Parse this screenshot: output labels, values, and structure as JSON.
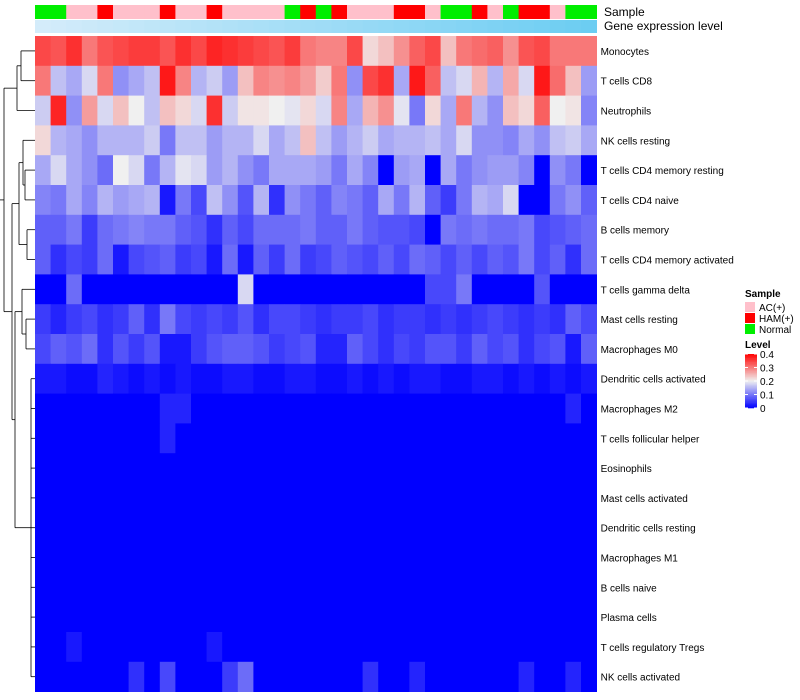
{
  "chart_data": {
    "type": "heatmap",
    "title": "",
    "annotation_labels": [
      "Sample",
      "Gene expression level"
    ],
    "rows": [
      "Monocytes",
      "T cells CD8",
      "Neutrophils",
      "NK cells resting",
      "T cells CD4 memory resting",
      "T cells CD4 naive",
      "B cells memory",
      "T cells CD4 memory activated",
      "T cells gamma delta",
      "Mast cells resting",
      "Macrophages M0",
      "Dendritic cells activated",
      "Macrophages M2",
      "T cells follicular helper",
      "Eosinophils",
      "Mast cells activated",
      "Dendritic cells resting",
      "Macrophages M1",
      "B cells naive",
      "Plasma cells",
      "T cells regulatory  Tregs",
      "NK cells activated"
    ],
    "n_samples": 36,
    "sample_groups": [
      "Normal",
      "Normal",
      "AC(+)",
      "AC(+)",
      "HAM(+)",
      "AC(+)",
      "AC(+)",
      "AC(+)",
      "HAM(+)",
      "AC(+)",
      "AC(+)",
      "HAM(+)",
      "AC(+)",
      "AC(+)",
      "AC(+)",
      "AC(+)",
      "Normal",
      "HAM(+)",
      "Normal",
      "HAM(+)",
      "AC(+)",
      "AC(+)",
      "AC(+)",
      "HAM(+)",
      "HAM(+)",
      "AC(+)",
      "Normal",
      "Normal",
      "HAM(+)",
      "AC(+)",
      "Normal",
      "HAM(+)",
      "HAM(+)",
      "AC(+)",
      "Normal",
      "Normal"
    ],
    "values": [
      [
        0.34,
        0.33,
        0.36,
        0.3,
        0.33,
        0.34,
        0.35,
        0.35,
        0.33,
        0.36,
        0.34,
        0.37,
        0.36,
        0.35,
        0.34,
        0.33,
        0.35,
        0.3,
        0.29,
        0.29,
        0.34,
        0.22,
        0.24,
        0.28,
        0.32,
        0.34,
        0.24,
        0.3,
        0.31,
        0.32,
        0.28,
        0.33,
        0.34,
        0.3,
        0.3,
        0.3
      ],
      [
        0.3,
        0.16,
        0.14,
        0.18,
        0.3,
        0.12,
        0.14,
        0.16,
        0.38,
        0.29,
        0.15,
        0.17,
        0.13,
        0.24,
        0.29,
        0.28,
        0.29,
        0.27,
        0.23,
        0.3,
        0.12,
        0.34,
        0.36,
        0.14,
        0.38,
        0.32,
        0.16,
        0.18,
        0.25,
        0.15,
        0.26,
        0.18,
        0.38,
        0.31,
        0.24,
        0.13
      ],
      [
        0.17,
        0.37,
        0.12,
        0.27,
        0.18,
        0.24,
        0.2,
        0.16,
        0.24,
        0.22,
        0.18,
        0.36,
        0.17,
        0.21,
        0.21,
        0.2,
        0.19,
        0.22,
        0.18,
        0.29,
        0.14,
        0.25,
        0.28,
        0.19,
        0.1,
        0.22,
        0.14,
        0.3,
        0.15,
        0.12,
        0.24,
        0.22,
        0.32,
        0.2,
        0.21,
        0.11
      ],
      [
        0.22,
        0.15,
        0.14,
        0.12,
        0.15,
        0.15,
        0.15,
        0.17,
        0.1,
        0.16,
        0.16,
        0.13,
        0.15,
        0.15,
        0.18,
        0.14,
        0.16,
        0.24,
        0.16,
        0.13,
        0.15,
        0.17,
        0.14,
        0.15,
        0.15,
        0.16,
        0.14,
        0.18,
        0.12,
        0.12,
        0.11,
        0.14,
        0.12,
        0.16,
        0.17,
        0.14
      ],
      [
        0.14,
        0.18,
        0.14,
        0.12,
        0.09,
        0.2,
        0.18,
        0.1,
        0.15,
        0.19,
        0.18,
        0.13,
        0.15,
        0.12,
        0.1,
        0.14,
        0.14,
        0.14,
        0.13,
        0.1,
        0.14,
        0.11,
        0.0,
        0.13,
        0.14,
        0.0,
        0.14,
        0.1,
        0.12,
        0.13,
        0.13,
        0.11,
        0.0,
        0.12,
        0.1,
        0.0
      ],
      [
        0.11,
        0.1,
        0.14,
        0.11,
        0.15,
        0.13,
        0.14,
        0.15,
        0.02,
        0.1,
        0.06,
        0.16,
        0.12,
        0.07,
        0.15,
        0.04,
        0.12,
        0.1,
        0.08,
        0.11,
        0.1,
        0.08,
        0.14,
        0.1,
        0.15,
        0.08,
        0.05,
        0.1,
        0.15,
        0.14,
        0.18,
        0.0,
        0.0,
        0.1,
        0.12,
        0.08
      ],
      [
        0.08,
        0.08,
        0.1,
        0.05,
        0.09,
        0.1,
        0.11,
        0.1,
        0.1,
        0.08,
        0.07,
        0.04,
        0.08,
        0.06,
        0.09,
        0.09,
        0.09,
        0.1,
        0.08,
        0.08,
        0.1,
        0.08,
        0.07,
        0.07,
        0.06,
        0.0,
        0.1,
        0.09,
        0.1,
        0.09,
        0.09,
        0.1,
        0.06,
        0.07,
        0.08,
        0.09
      ],
      [
        0.08,
        0.04,
        0.06,
        0.05,
        0.09,
        0.02,
        0.06,
        0.07,
        0.08,
        0.05,
        0.06,
        0.02,
        0.09,
        0.02,
        0.08,
        0.05,
        0.09,
        0.05,
        0.06,
        0.08,
        0.07,
        0.06,
        0.08,
        0.06,
        0.09,
        0.08,
        0.06,
        0.08,
        0.06,
        0.08,
        0.07,
        0.1,
        0.06,
        0.08,
        0.04,
        0.09
      ],
      [
        0.0,
        0.0,
        0.09,
        0.0,
        0.0,
        0.0,
        0.0,
        0.0,
        0.0,
        0.0,
        0.0,
        0.0,
        0.0,
        0.18,
        0.0,
        0.0,
        0.0,
        0.0,
        0.0,
        0.0,
        0.0,
        0.0,
        0.0,
        0.0,
        0.0,
        0.06,
        0.06,
        0.1,
        0.0,
        0.0,
        0.0,
        0.0,
        0.07,
        0.0,
        0.0,
        0.0
      ],
      [
        0.05,
        0.03,
        0.05,
        0.06,
        0.04,
        0.05,
        0.08,
        0.04,
        0.1,
        0.06,
        0.05,
        0.06,
        0.05,
        0.07,
        0.04,
        0.06,
        0.06,
        0.05,
        0.04,
        0.05,
        0.05,
        0.06,
        0.04,
        0.05,
        0.05,
        0.04,
        0.05,
        0.04,
        0.05,
        0.06,
        0.05,
        0.04,
        0.05,
        0.04,
        0.08,
        0.06
      ],
      [
        0.06,
        0.08,
        0.07,
        0.09,
        0.04,
        0.07,
        0.05,
        0.07,
        0.02,
        0.02,
        0.05,
        0.07,
        0.08,
        0.08,
        0.07,
        0.05,
        0.06,
        0.07,
        0.03,
        0.03,
        0.08,
        0.06,
        0.04,
        0.06,
        0.05,
        0.07,
        0.07,
        0.05,
        0.08,
        0.06,
        0.07,
        0.04,
        0.06,
        0.07,
        0.02,
        0.08
      ],
      [
        0.02,
        0.02,
        0.01,
        0.01,
        0.03,
        0.02,
        0.01,
        0.02,
        0.01,
        0.02,
        0.01,
        0.01,
        0.02,
        0.02,
        0.01,
        0.01,
        0.02,
        0.02,
        0.01,
        0.01,
        0.02,
        0.01,
        0.02,
        0.01,
        0.02,
        0.02,
        0.01,
        0.01,
        0.02,
        0.02,
        0.01,
        0.02,
        0.01,
        0.02,
        0.01,
        0.02
      ],
      [
        0.0,
        0.0,
        0.0,
        0.0,
        0.0,
        0.0,
        0.0,
        0.0,
        0.03,
        0.03,
        0.0,
        0.0,
        0.0,
        0.0,
        0.0,
        0.0,
        0.0,
        0.0,
        0.0,
        0.0,
        0.0,
        0.0,
        0.0,
        0.0,
        0.0,
        0.0,
        0.0,
        0.0,
        0.0,
        0.0,
        0.0,
        0.0,
        0.0,
        0.0,
        0.03,
        0.0
      ],
      [
        0.0,
        0.0,
        0.0,
        0.0,
        0.0,
        0.0,
        0.0,
        0.0,
        0.03,
        0.0,
        0.0,
        0.0,
        0.0,
        0.0,
        0.0,
        0.0,
        0.0,
        0.0,
        0.0,
        0.0,
        0.0,
        0.0,
        0.0,
        0.0,
        0.0,
        0.0,
        0.0,
        0.0,
        0.0,
        0.0,
        0.0,
        0.0,
        0.0,
        0.0,
        0.0,
        0.0
      ],
      [
        0.0,
        0.0,
        0.0,
        0.0,
        0.0,
        0.0,
        0.0,
        0.0,
        0.0,
        0.0,
        0.0,
        0.0,
        0.0,
        0.0,
        0.0,
        0.0,
        0.0,
        0.0,
        0.0,
        0.0,
        0.0,
        0.0,
        0.0,
        0.0,
        0.0,
        0.0,
        0.0,
        0.0,
        0.0,
        0.0,
        0.0,
        0.0,
        0.0,
        0.0,
        0.0,
        0.0
      ],
      [
        0.0,
        0.0,
        0.0,
        0.0,
        0.0,
        0.0,
        0.0,
        0.0,
        0.0,
        0.0,
        0.0,
        0.0,
        0.0,
        0.0,
        0.0,
        0.0,
        0.0,
        0.0,
        0.0,
        0.0,
        0.0,
        0.0,
        0.0,
        0.0,
        0.0,
        0.0,
        0.0,
        0.0,
        0.0,
        0.0,
        0.0,
        0.0,
        0.0,
        0.0,
        0.0,
        0.0
      ],
      [
        0.0,
        0.0,
        0.0,
        0.0,
        0.0,
        0.0,
        0.0,
        0.0,
        0.0,
        0.0,
        0.0,
        0.0,
        0.0,
        0.0,
        0.0,
        0.0,
        0.0,
        0.0,
        0.0,
        0.0,
        0.0,
        0.0,
        0.0,
        0.0,
        0.0,
        0.0,
        0.0,
        0.0,
        0.0,
        0.0,
        0.0,
        0.0,
        0.0,
        0.0,
        0.0,
        0.0
      ],
      [
        0.0,
        0.0,
        0.0,
        0.0,
        0.0,
        0.0,
        0.0,
        0.0,
        0.0,
        0.0,
        0.0,
        0.0,
        0.0,
        0.0,
        0.0,
        0.0,
        0.0,
        0.0,
        0.0,
        0.0,
        0.0,
        0.0,
        0.0,
        0.0,
        0.0,
        0.0,
        0.0,
        0.0,
        0.0,
        0.0,
        0.0,
        0.0,
        0.0,
        0.0,
        0.0,
        0.0
      ],
      [
        0.0,
        0.0,
        0.0,
        0.0,
        0.0,
        0.0,
        0.0,
        0.0,
        0.0,
        0.0,
        0.0,
        0.0,
        0.0,
        0.0,
        0.0,
        0.0,
        0.0,
        0.0,
        0.0,
        0.0,
        0.0,
        0.0,
        0.0,
        0.0,
        0.0,
        0.0,
        0.0,
        0.0,
        0.0,
        0.0,
        0.0,
        0.0,
        0.0,
        0.0,
        0.0,
        0.0
      ],
      [
        0.0,
        0.0,
        0.0,
        0.0,
        0.0,
        0.0,
        0.0,
        0.0,
        0.0,
        0.0,
        0.0,
        0.0,
        0.0,
        0.0,
        0.0,
        0.0,
        0.0,
        0.0,
        0.0,
        0.0,
        0.0,
        0.0,
        0.0,
        0.0,
        0.0,
        0.0,
        0.0,
        0.0,
        0.0,
        0.0,
        0.0,
        0.0,
        0.0,
        0.0,
        0.0,
        0.0
      ],
      [
        0.0,
        0.0,
        0.02,
        0.0,
        0.0,
        0.0,
        0.0,
        0.0,
        0.0,
        0.0,
        0.0,
        0.02,
        0.0,
        0.0,
        0.0,
        0.0,
        0.0,
        0.0,
        0.0,
        0.0,
        0.0,
        0.0,
        0.0,
        0.0,
        0.0,
        0.0,
        0.0,
        0.0,
        0.0,
        0.0,
        0.0,
        0.0,
        0.0,
        0.0,
        0.0,
        0.0
      ],
      [
        0.0,
        0.0,
        0.0,
        0.0,
        0.0,
        0.0,
        0.04,
        0.0,
        0.06,
        0.0,
        0.0,
        0.0,
        0.05,
        0.09,
        0.0,
        0.0,
        0.0,
        0.0,
        0.0,
        0.0,
        0.0,
        0.04,
        0.0,
        0.0,
        0.03,
        0.0,
        0.0,
        0.0,
        0.0,
        0.0,
        0.0,
        0.03,
        0.0,
        0.0,
        0.03,
        0.0
      ]
    ],
    "color_scale": {
      "min": 0,
      "max": 0.4,
      "low": "#0000ff",
      "mid": "#f0f0f0",
      "high": "#ff0000",
      "mid_value": 0.2,
      "title": "Level",
      "tick_labels": [
        "0.4",
        "0.3",
        "0.2",
        "0.1",
        "0"
      ]
    },
    "expression_bar_colors": [
      "#d4ecfa",
      "#6ccdf2"
    ],
    "legend": {
      "title": "Sample",
      "entries": [
        {
          "label": "AC(+)",
          "color": "#ffc0cb"
        },
        {
          "label": "HAM(+)",
          "color": "#ff0000"
        },
        {
          "label": "Normal",
          "color": "#00ee00"
        }
      ],
      "position": "right"
    },
    "row_dendrogram": "left"
  }
}
